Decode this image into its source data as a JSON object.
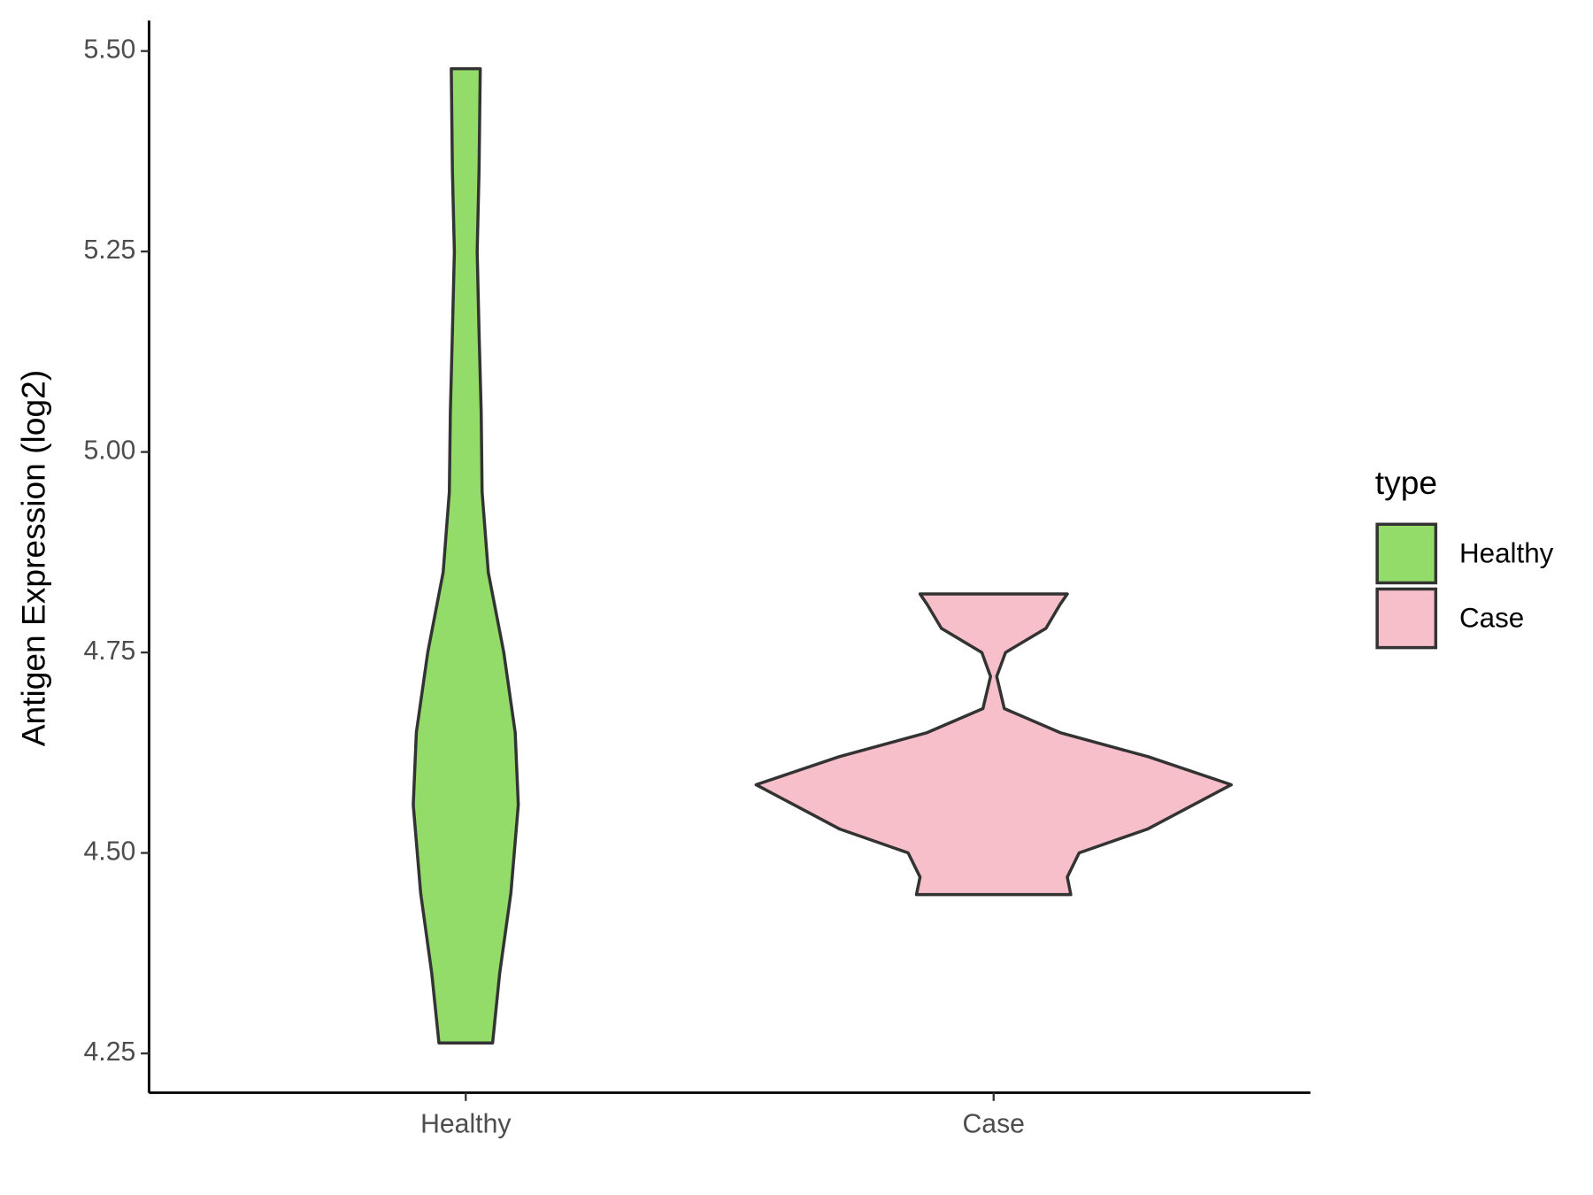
{
  "chart_data": {
    "type": "violin",
    "y_label": "Antigen Expression (log2)",
    "legend_title": "type",
    "categories": [
      "Healthy",
      "Case"
    ],
    "series": [
      {
        "name": "Healthy",
        "color": "#93dc6a",
        "y": [
          4.263,
          4.35,
          4.45,
          4.56,
          4.65,
          4.75,
          4.85,
          4.95,
          5.05,
          5.15,
          5.25,
          5.35,
          5.478
        ],
        "density": [
          0.113,
          0.143,
          0.19,
          0.221,
          0.208,
          0.16,
          0.095,
          0.069,
          0.065,
          0.056,
          0.048,
          0.056,
          0.061
        ]
      },
      {
        "name": "Case",
        "color": "#f7bfca",
        "y": [
          4.448,
          4.47,
          4.5,
          4.53,
          4.585,
          4.62,
          4.65,
          4.68,
          4.72,
          4.75,
          4.78,
          4.81,
          4.823
        ],
        "density": [
          0.325,
          0.31,
          0.36,
          0.65,
          1.0,
          0.65,
          0.28,
          0.045,
          0.013,
          0.05,
          0.22,
          0.28,
          0.31
        ]
      }
    ],
    "ylim": [
      4.201,
      5.538
    ],
    "yticks": [
      4.25,
      {
        "value": 4.5,
        "label": "4.50"
      },
      4.75,
      {
        "value": 5,
        "label": "5.00"
      },
      5.25,
      {
        "value": 5.5,
        "label": "5.50"
      }
    ],
    "legend_position": "right"
  }
}
